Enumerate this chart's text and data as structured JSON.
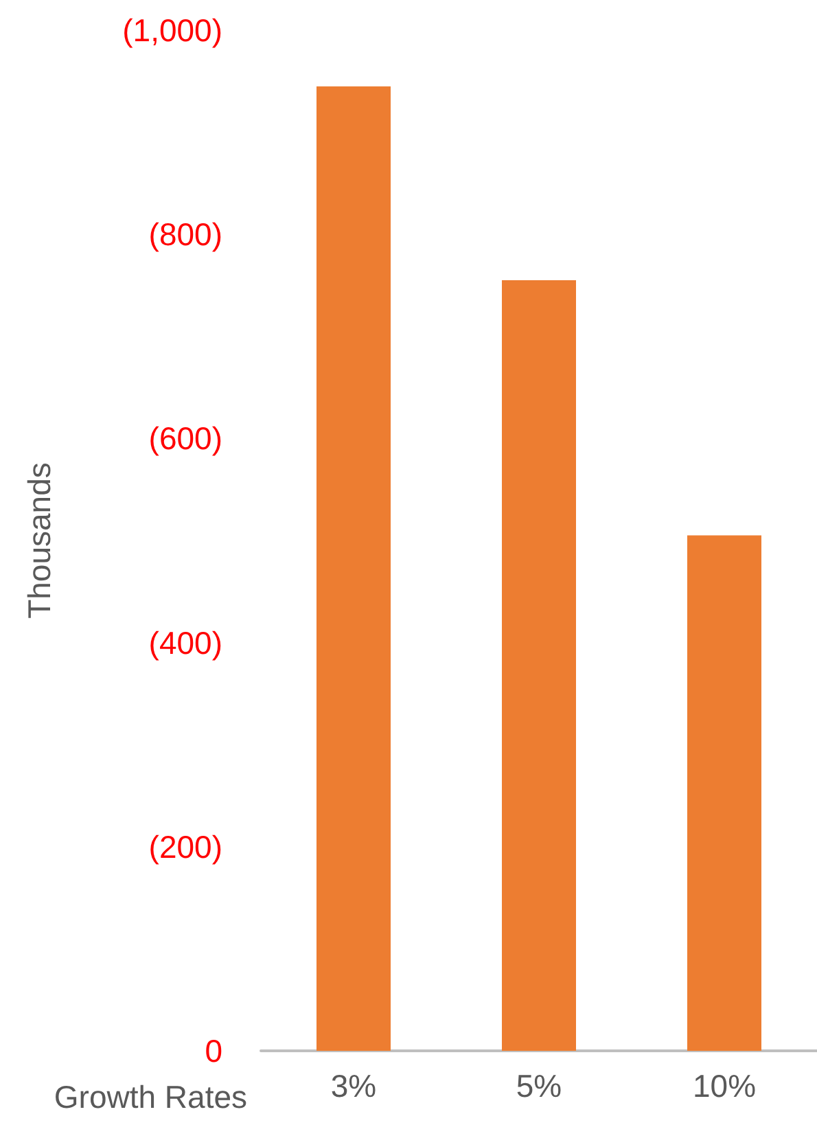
{
  "chart_data": {
    "type": "bar",
    "xlabel": "Growth Rates",
    "ylabel": "Thousands",
    "categories": [
      "3%",
      "5%",
      "10%"
    ],
    "values": [
      -945,
      -755,
      -505
    ],
    "color": "#ed7d31",
    "ylim": [
      0,
      -1000
    ],
    "yticks": [
      {
        "value": 0,
        "label": "0"
      },
      {
        "value": -200,
        "label": "(200)"
      },
      {
        "value": -400,
        "label": "(400)"
      },
      {
        "value": -600,
        "label": "(600)"
      },
      {
        "value": -800,
        "label": "(800)"
      },
      {
        "value": -1000,
        "label": "(1,000)"
      }
    ],
    "grid": false
  }
}
